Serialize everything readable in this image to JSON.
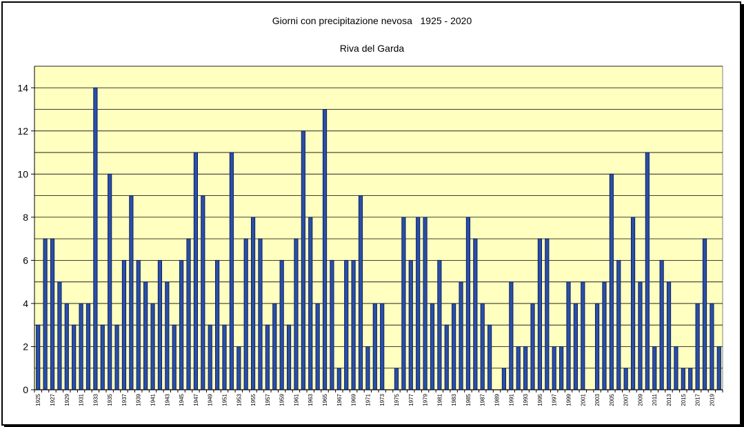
{
  "chart_data": {
    "type": "bar",
    "title": "Giorni con precipitazione nevosa   1925 - 2020",
    "subtitle": "Riva del Garda",
    "xlabel": "",
    "ylabel": "",
    "ylim": [
      0,
      15
    ],
    "yticks": [
      0,
      2,
      4,
      6,
      8,
      10,
      12,
      14
    ],
    "grid": true,
    "legend": "none",
    "colors": {
      "plot_bg": "#ffffc0",
      "bar_fill": "#2a4fa8",
      "bar_stroke": "#0d1f5c",
      "grid": "#000000"
    },
    "categories": [
      "1925",
      "1926",
      "1927",
      "1928",
      "1929",
      "1930",
      "1931",
      "1932",
      "1933",
      "1934",
      "1935",
      "1936",
      "1937",
      "1938",
      "1939",
      "1940",
      "1941",
      "1942",
      "1943",
      "1944",
      "1945",
      "1946",
      "1947",
      "1948",
      "1949",
      "1950",
      "1951",
      "1952",
      "1953",
      "1954",
      "1955",
      "1956",
      "1957",
      "1958",
      "1959",
      "1960",
      "1961",
      "1962",
      "1963",
      "1964",
      "1965",
      "1966",
      "1967",
      "1968",
      "1969",
      "1970",
      "1971",
      "1972",
      "1973",
      "1974",
      "1975",
      "1976",
      "1977",
      "1978",
      "1979",
      "1980",
      "1981",
      "1982",
      "1983",
      "1984",
      "1985",
      "1986",
      "1987",
      "1988",
      "1989",
      "1990",
      "1991",
      "1992",
      "1993",
      "1994",
      "1995",
      "1996",
      "1997",
      "1998",
      "1999",
      "2000",
      "2001",
      "2002",
      "2003",
      "2004",
      "2005",
      "2006",
      "2007",
      "2008",
      "2009",
      "2010",
      "2011",
      "2012",
      "2013",
      "2014",
      "2015",
      "2016",
      "2017",
      "2018",
      "2019",
      "2020"
    ],
    "values": [
      3,
      7,
      7,
      5,
      4,
      3,
      4,
      4,
      14,
      3,
      10,
      3,
      6,
      9,
      6,
      5,
      4,
      6,
      5,
      3,
      6,
      7,
      11,
      9,
      3,
      6,
      3,
      11,
      2,
      7,
      8,
      7,
      3,
      4,
      6,
      3,
      7,
      12,
      8,
      4,
      13,
      6,
      1,
      6,
      6,
      9,
      2,
      4,
      4,
      0,
      1,
      8,
      6,
      8,
      8,
      4,
      6,
      3,
      4,
      5,
      8,
      7,
      4,
      3,
      0,
      1,
      5,
      2,
      2,
      4,
      7,
      7,
      2,
      2,
      5,
      4,
      5,
      0,
      4,
      5,
      10,
      6,
      1,
      8,
      5,
      11,
      2,
      6,
      5,
      2,
      1,
      1,
      4,
      7,
      4,
      2
    ],
    "xtick_labels": [
      "1925",
      "1927",
      "1929",
      "1931",
      "1933",
      "1935",
      "1937",
      "1939",
      "1941",
      "1943",
      "1945",
      "1947",
      "1949",
      "1951",
      "1953",
      "1955",
      "1957",
      "1959",
      "1961",
      "1963",
      "1965",
      "1967",
      "1969",
      "1971",
      "1973",
      "1975",
      "1977",
      "1979",
      "1981",
      "1983",
      "1985",
      "1987",
      "1989",
      "1991",
      "1993",
      "1995",
      "1997",
      "1999",
      "2001",
      "2003",
      "2005",
      "2007",
      "2009",
      "2011",
      "2013",
      "2015",
      "2017",
      "2019"
    ]
  }
}
